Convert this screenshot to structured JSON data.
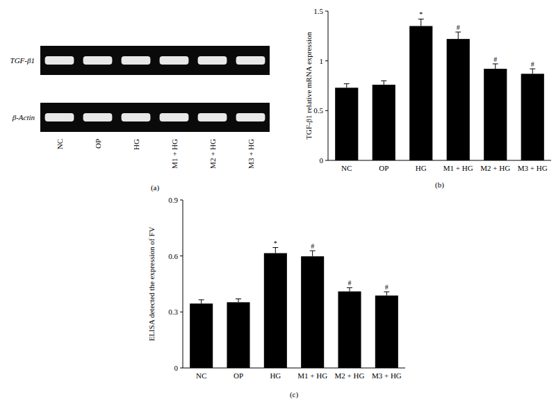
{
  "gel": {
    "rows": [
      "TGF-β1",
      "β-Actin"
    ],
    "lanes": [
      "NC",
      "OP",
      "HG",
      "M1 + HG",
      "M2 + HG",
      "M3 + HG"
    ],
    "caption": "(a)"
  },
  "chart_data": [
    {
      "type": "bar",
      "title": "(b)",
      "categories": [
        "NC",
        "OP",
        "HG",
        "M1 + HG",
        "M2 + HG",
        "M3 + HG"
      ],
      "values": [
        0.73,
        0.76,
        1.35,
        1.22,
        0.92,
        0.87
      ],
      "errors": [
        0.04,
        0.04,
        0.07,
        0.07,
        0.05,
        0.05
      ],
      "annotations": [
        null,
        null,
        "*",
        "#",
        "#",
        "#"
      ],
      "color": "#000000",
      "y_label": "TGF-β1 relative mRNA expression",
      "ylim": [
        0,
        1.5
      ],
      "yticks": [
        0,
        0.5,
        1,
        1.5
      ],
      "grid": false
    },
    {
      "type": "bar",
      "title": "(c)",
      "categories": [
        "NC",
        "OP",
        "HG",
        "M1 + HG",
        "M2 + HG",
        "M3 + HG"
      ],
      "values": [
        0.345,
        0.352,
        0.615,
        0.598,
        0.41,
        0.388
      ],
      "errors": [
        0.02,
        0.018,
        0.03,
        0.03,
        0.02,
        0.02
      ],
      "annotations": [
        null,
        null,
        "*",
        "#",
        "#",
        "#"
      ],
      "color": "#000000",
      "y_label": "ELISA detected the expression of FV",
      "ylim": [
        0,
        0.9
      ],
      "yticks": [
        0,
        0.3,
        0.6,
        0.9
      ],
      "grid": false
    }
  ]
}
